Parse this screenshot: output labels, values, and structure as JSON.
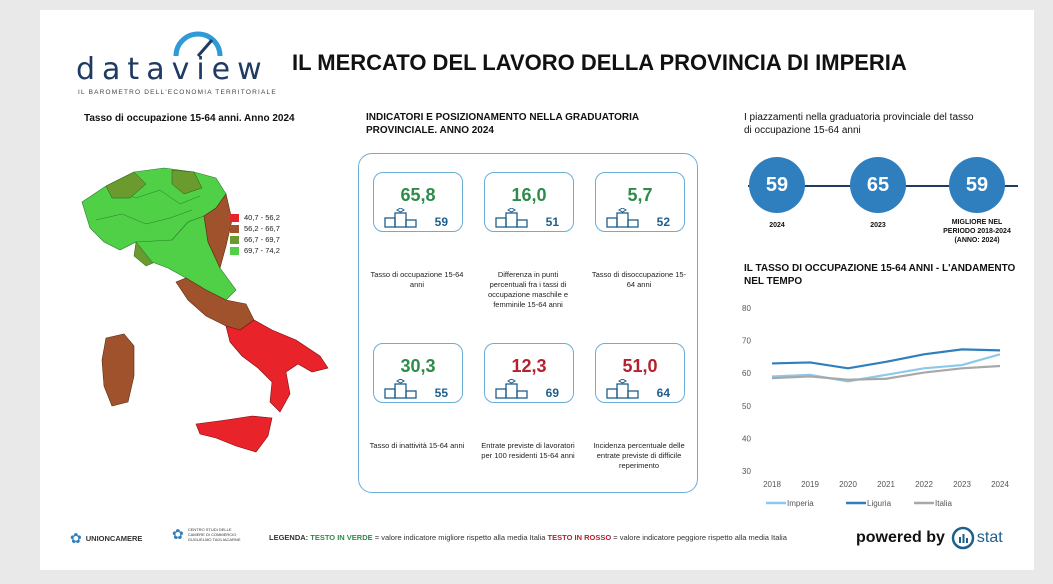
{
  "brand": {
    "name": "dataview",
    "tagline": "IL BAROMETRO DELL'ECONOMIA TERRITORIALE"
  },
  "title": "IL MERCATO DEL LAVORO DELLA PROVINCIA DI IMPERIA",
  "map": {
    "title": "Tasso di occupazione 15-64 anni. Anno 2024",
    "legend": [
      {
        "label": "40,7 - 56,2",
        "color": "#e8232a"
      },
      {
        "label": "56,2 - 66,7",
        "color": "#a0522d"
      },
      {
        "label": "66,7 - 69,7",
        "color": "#6b9a2f"
      },
      {
        "label": "69,7 - 74,2",
        "color": "#4fd046"
      }
    ]
  },
  "indicators": {
    "title_line1": "INDICATORI E POSIZIONAMENTO NELLA GRADUATORIA",
    "title_line2": "PROVINCIALE. ANNO 2024",
    "cards": [
      {
        "value": "65,8",
        "rank": "59",
        "label": "Tasso di occupazione 15-64 anni",
        "tone": "green"
      },
      {
        "value": "16,0",
        "rank": "51",
        "label": "Differenza in punti percentuali fra i tassi di occupazione maschile e femminile 15-64 anni",
        "tone": "green"
      },
      {
        "value": "5,7",
        "rank": "52",
        "label": "Tasso di disoccupazione 15-64 anni",
        "tone": "green"
      },
      {
        "value": "30,3",
        "rank": "55",
        "label": "Tasso di inattività 15-64 anni",
        "tone": "green"
      },
      {
        "value": "12,3",
        "rank": "69",
        "label": "Entrate previste di lavoratori per 100 residenti 15-64 anni",
        "tone": "red"
      },
      {
        "value": "51,0",
        "rank": "64",
        "label": "Incidenza percentuale delle entrate previste di difficile reperimento",
        "tone": "red"
      }
    ]
  },
  "ranking": {
    "title_line1": "I piazzamenti nella graduatoria provinciale del tasso",
    "title_line2": "di occupazione 15-64 anni",
    "items": [
      {
        "value": "59",
        "label": "2024"
      },
      {
        "value": "65",
        "label": "2023"
      },
      {
        "value": "59",
        "label": "MIGLIORE NEL PERIODO 2018-2024 (ANNO: 2024)"
      }
    ]
  },
  "chart_data": {
    "type": "line",
    "title": "IL TASSO DI OCCUPAZIONE 15-64 ANNI - L'ANDAMENTO NEL TEMPO",
    "x": [
      "2018",
      "2019",
      "2020",
      "2021",
      "2022",
      "2023",
      "2024"
    ],
    "ylim": [
      30,
      80
    ],
    "yticks": [
      "30",
      "40",
      "50",
      "60",
      "70",
      "80"
    ],
    "series": [
      {
        "name": "Imperia",
        "color": "#8cc8ec",
        "values": [
          59.0,
          59.5,
          57.5,
          59.5,
          61.5,
          62.5,
          65.8
        ]
      },
      {
        "name": "Liguria",
        "color": "#2f7fbf",
        "values": [
          63.0,
          63.3,
          61.5,
          63.5,
          65.8,
          67.3,
          67.0
        ]
      },
      {
        "name": "Italia",
        "color": "#a8a8a8",
        "values": [
          58.5,
          59.0,
          58.0,
          58.3,
          60.2,
          61.5,
          62.2
        ]
      }
    ]
  },
  "footer": {
    "org1": "UNIONCAMERE",
    "org2_line1": "CENTRO STUDI DELLE",
    "org2_line2": "CAMERE DI COMMERCIO",
    "org2_line3": "GUGLIELMO TAGLIACARNE",
    "legend_label": "LEGENDA:",
    "green_text": "TESTO IN VERDE",
    "green_desc": " = valore indicatore migliore rispetto alla media Italia ",
    "red_text": "TESTO IN ROSSO",
    "red_desc": " = valore indicatore peggiore rispetto alla media Italia",
    "powered": "powered by",
    "stat_logo": "stat"
  }
}
